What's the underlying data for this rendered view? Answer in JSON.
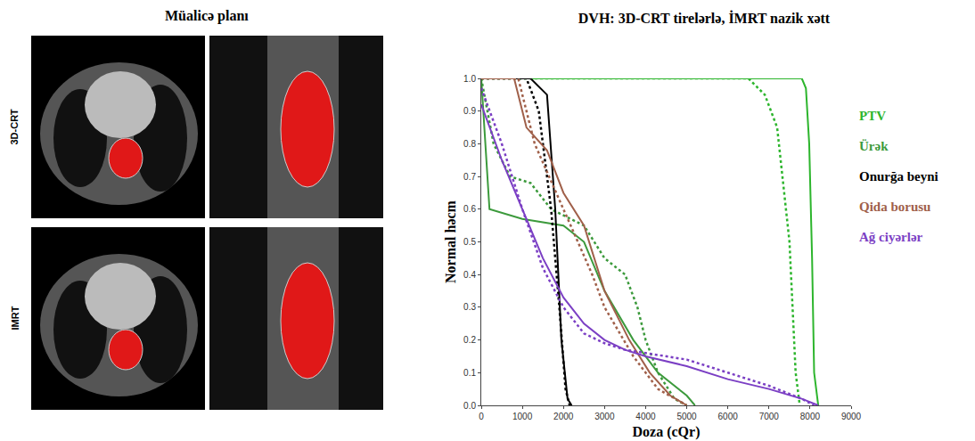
{
  "chart_data": {
    "type": "line",
    "title": "DVH: 3D-CRT tirelərlə, İMRT nazik xətt",
    "x_label": "Doza (cQr)",
    "y_label": "Normal həcm",
    "xlim": [
      0,
      9000
    ],
    "xticks": [
      0,
      1000,
      2000,
      3000,
      4000,
      5000,
      6000,
      7000,
      8000,
      9000
    ],
    "ylim": [
      0,
      1.0
    ],
    "yticks": [
      {
        "value": 0,
        "label": "0.0"
      },
      0.1,
      0.2,
      0.3,
      0.4,
      0.5,
      0.6,
      0.7,
      0.8,
      0.9,
      {
        "value": 1.0,
        "label": "1.0"
      }
    ],
    "grid": false,
    "legend": "right",
    "series": [
      {
        "name": "PTV",
        "color": "#2db52d",
        "line_style": "solid",
        "x": [
          0,
          7800,
          7900,
          7980,
          8050,
          8100,
          8200
        ],
        "values": [
          1,
          1,
          0.97,
          0.8,
          0.45,
          0.1,
          0
        ]
      },
      {
        "name": "PTV",
        "color": "#2db52d",
        "line_style": "dot",
        "x": [
          0,
          6500,
          6900,
          7200,
          7500,
          7650,
          7750
        ],
        "values": [
          1,
          1,
          0.95,
          0.85,
          0.5,
          0.1,
          0
        ]
      },
      {
        "name": "Ürək",
        "color": "#3c9a3c",
        "line_style": "solid",
        "x": [
          0,
          200,
          1000,
          2000,
          2500,
          3000,
          3700,
          4300,
          5000,
          5200
        ],
        "values": [
          1,
          0.6,
          0.57,
          0.55,
          0.5,
          0.35,
          0.2,
          0.1,
          0.03,
          0
        ]
      },
      {
        "name": "Ürək",
        "color": "#3c9a3c",
        "line_style": "dot",
        "x": [
          0,
          300,
          700,
          1200,
          1700,
          2500,
          3000,
          3500,
          3800,
          4000,
          4300,
          4700,
          5000
        ],
        "values": [
          1,
          0.8,
          0.7,
          0.68,
          0.6,
          0.55,
          0.45,
          0.4,
          0.3,
          0.2,
          0.1,
          0.02,
          0
        ]
      },
      {
        "name": "Onurğa beyni",
        "color": "#000000",
        "line_style": "solid",
        "x": [
          0,
          1200,
          1600,
          1800,
          1950,
          2100,
          2200
        ],
        "values": [
          1,
          1,
          0.95,
          0.6,
          0.2,
          0.02,
          0
        ]
      },
      {
        "name": "Onurğa beyni",
        "color": "#000000",
        "line_style": "dot",
        "x": [
          0,
          1100,
          1400,
          1700,
          1900,
          2050,
          2150
        ],
        "values": [
          1,
          1,
          0.9,
          0.6,
          0.3,
          0.05,
          0
        ]
      },
      {
        "name": "Qida borusu",
        "color": "#a0604a",
        "line_style": "solid",
        "x": [
          0,
          800,
          1100,
          1600,
          2000,
          2500,
          3000,
          3600,
          4100,
          4600,
          5000
        ],
        "values": [
          1,
          1,
          0.85,
          0.78,
          0.65,
          0.55,
          0.35,
          0.2,
          0.1,
          0.03,
          0
        ]
      },
      {
        "name": "Qida borusu",
        "color": "#a0604a",
        "line_style": "dot",
        "x": [
          0,
          900,
          1300,
          2000,
          2700,
          3000,
          3700,
          4300,
          5000
        ],
        "values": [
          1,
          1,
          0.8,
          0.6,
          0.4,
          0.3,
          0.15,
          0.05,
          0
        ]
      },
      {
        "name": "Ağ ciyərlər",
        "color": "#7b3fc4",
        "line_style": "solid",
        "x": [
          0,
          500,
          1000,
          1500,
          2000,
          2500,
          3000,
          3500,
          4000,
          5000,
          6000,
          7000,
          7800,
          8200
        ],
        "values": [
          0.92,
          0.75,
          0.6,
          0.45,
          0.33,
          0.25,
          0.2,
          0.17,
          0.15,
          0.12,
          0.08,
          0.05,
          0.02,
          0
        ]
      },
      {
        "name": "Ağ ciyərlər",
        "color": "#7b3fc4",
        "line_style": "dot",
        "x": [
          0,
          500,
          1000,
          1500,
          2000,
          2500,
          3000,
          3500,
          4000,
          5000,
          6000,
          7000,
          7800,
          8100
        ],
        "values": [
          0.97,
          0.8,
          0.6,
          0.42,
          0.3,
          0.22,
          0.19,
          0.17,
          0.16,
          0.14,
          0.1,
          0.06,
          0.02,
          0
        ]
      }
    ]
  },
  "treatment_plan": {
    "title": "Müalicə planı",
    "rows": [
      "3D-CRT",
      "IMRT"
    ]
  }
}
